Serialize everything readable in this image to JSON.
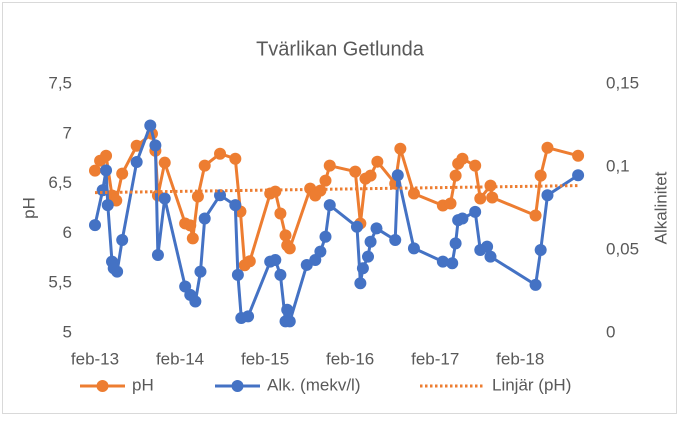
{
  "chart_data": {
    "type": "line",
    "title": "Tvärlikan Getlunda",
    "y_label": "pH",
    "y2_label": "Alkalinitet",
    "xlim": [
      2013.08,
      2018.9
    ],
    "xticks": [
      {
        "value": 2013.08,
        "label": "feb-13"
      },
      {
        "value": 2014.08,
        "label": "feb-14"
      },
      {
        "value": 2015.08,
        "label": "feb-15"
      },
      {
        "value": 2016.08,
        "label": "feb-16"
      },
      {
        "value": 2017.08,
        "label": "feb-17"
      },
      {
        "value": 2018.08,
        "label": "feb-18"
      }
    ],
    "ylim": [
      5,
      7.5
    ],
    "yticks": [
      5,
      {
        "value": 5.5,
        "label": "5,5"
      },
      6,
      {
        "value": 6.5,
        "label": "6,5"
      },
      7,
      {
        "value": 7.5,
        "label": "7,5"
      }
    ],
    "y2lim": [
      0,
      0.15
    ],
    "y2ticks": [
      0,
      {
        "value": 0.05,
        "label": "0,05"
      },
      {
        "value": 0.1,
        "label": "0,1"
      },
      {
        "value": 0.15,
        "label": "0,15"
      }
    ],
    "grid": false,
    "legend": "bottom",
    "series": [
      {
        "name": "pH",
        "color": "#ed7d31",
        "markers": true,
        "line_style": "solid",
        "x": [
          2013.08,
          2013.14,
          2013.21,
          2013.28,
          2013.33,
          2013.4,
          2013.57,
          2013.75,
          2013.79,
          2013.82,
          2013.9,
          2014.14,
          2014.2,
          2014.23,
          2014.29,
          2014.37,
          2014.55,
          2014.73,
          2014.79,
          2014.84,
          2014.9,
          2015.14,
          2015.2,
          2015.26,
          2015.32,
          2015.34,
          2015.37,
          2015.61,
          2015.67,
          2015.73,
          2015.79,
          2015.84,
          2016.14,
          2016.2,
          2016.26,
          2016.32,
          2016.4,
          2016.61,
          2016.67,
          2016.83,
          2017.17,
          2017.26,
          2017.32,
          2017.35,
          2017.4,
          2017.55,
          2017.61,
          2017.73,
          2017.75,
          2018.26,
          2018.32,
          2018.4,
          2018.76
        ],
        "values": [
          6.63,
          6.73,
          6.78,
          6.38,
          6.33,
          6.6,
          6.88,
          7.0,
          6.83,
          6.38,
          6.71,
          6.1,
          6.08,
          5.95,
          6.37,
          6.68,
          6.8,
          6.75,
          6.22,
          5.68,
          5.72,
          6.4,
          6.42,
          6.2,
          5.98,
          5.88,
          5.85,
          6.45,
          6.38,
          6.43,
          6.53,
          6.68,
          6.62,
          6.1,
          6.55,
          6.58,
          6.72,
          6.5,
          6.85,
          6.4,
          6.28,
          6.3,
          6.58,
          6.7,
          6.75,
          6.68,
          6.35,
          6.48,
          6.36,
          6.18,
          6.58,
          6.86,
          6.78
        ]
      },
      {
        "name": "Alk. (mekv/l)",
        "color": "#4472c4",
        "axis": "y2",
        "markers": true,
        "line_style": "solid",
        "x": [
          2013.08,
          2013.17,
          2013.21,
          2013.23,
          2013.28,
          2013.3,
          2013.34,
          2013.4,
          2013.57,
          2013.73,
          2013.79,
          2013.82,
          2013.9,
          2014.14,
          2014.2,
          2014.26,
          2014.32,
          2014.37,
          2014.55,
          2014.73,
          2014.76,
          2014.8,
          2014.88,
          2015.14,
          2015.2,
          2015.26,
          2015.32,
          2015.34,
          2015.37,
          2015.57,
          2015.67,
          2015.73,
          2015.79,
          2015.84,
          2016.16,
          2016.2,
          2016.23,
          2016.29,
          2016.32,
          2016.39,
          2016.61,
          2016.64,
          2016.83,
          2017.17,
          2017.28,
          2017.32,
          2017.35,
          2017.4,
          2017.55,
          2017.61,
          2017.69,
          2017.73,
          2018.26,
          2018.32,
          2018.4,
          2018.76
        ],
        "values": [
          0.065,
          0.086,
          0.098,
          0.077,
          0.043,
          0.039,
          0.037,
          0.056,
          0.103,
          0.125,
          0.113,
          0.047,
          0.081,
          0.028,
          0.023,
          0.019,
          0.037,
          0.069,
          0.083,
          0.077,
          0.035,
          0.009,
          0.01,
          0.043,
          0.044,
          0.035,
          0.007,
          0.014,
          0.007,
          0.041,
          0.044,
          0.049,
          0.058,
          0.077,
          0.064,
          0.03,
          0.039,
          0.046,
          0.055,
          0.063,
          0.056,
          0.095,
          0.051,
          0.043,
          0.042,
          0.054,
          0.068,
          0.069,
          0.073,
          0.05,
          0.052,
          0.046,
          0.029,
          0.05,
          0.083,
          0.095
        ]
      },
      {
        "name": "Linjär (pH)",
        "color": "#ed7d31",
        "markers": false,
        "line_style": "dotted",
        "x": [
          2013.08,
          2018.76
        ],
        "values": [
          6.41,
          6.48
        ]
      }
    ]
  }
}
